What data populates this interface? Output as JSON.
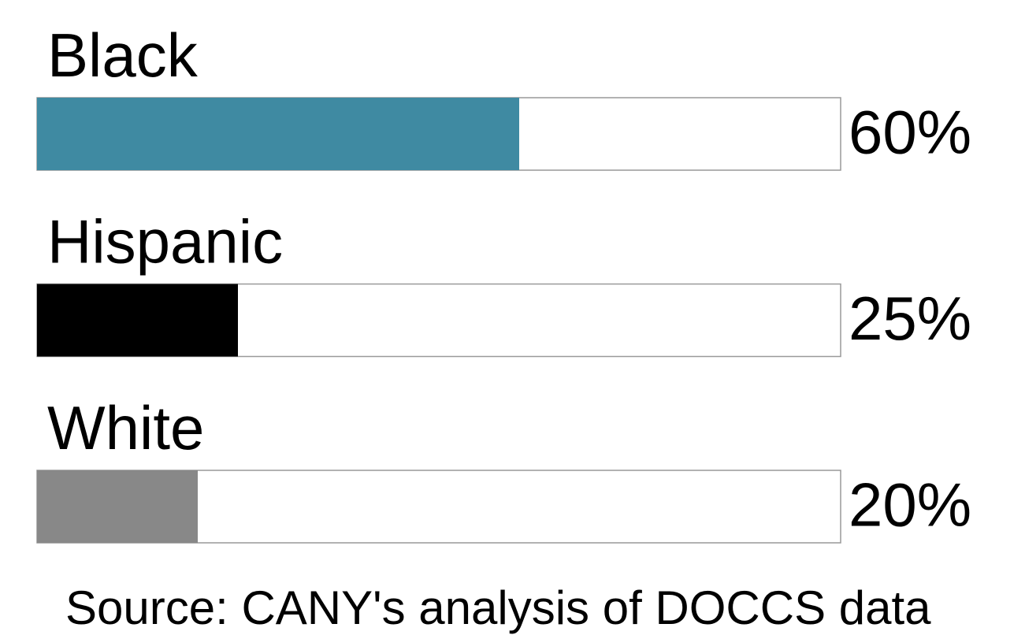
{
  "chart_data": {
    "type": "bar",
    "orientation": "horizontal",
    "categories": [
      "Black",
      "Hispanic",
      "White"
    ],
    "values": [
      60,
      25,
      20
    ],
    "value_labels": [
      "60%",
      "25%",
      "20%"
    ],
    "colors": [
      "#3f8aa2",
      "#000000",
      "#888888"
    ],
    "xlim": [
      0,
      100
    ],
    "source": "Source: CANY's analysis of DOCCS data"
  }
}
